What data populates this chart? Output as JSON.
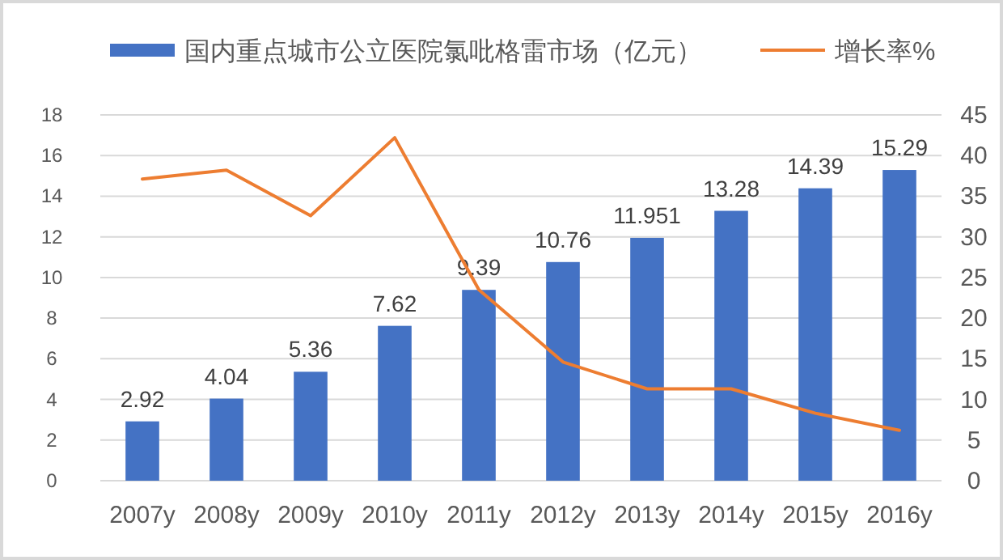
{
  "chart_data": {
    "type": "bar",
    "categories": [
      "2007y",
      "2008y",
      "2009y",
      "2010y",
      "2011y",
      "2012y",
      "2013y",
      "2014y",
      "2015y",
      "2016y"
    ],
    "series": [
      {
        "name": "国内重点城市公立医院氯吡格雷市场（亿元）",
        "color": "#4472c4",
        "values": [
          2.92,
          4.04,
          5.36,
          7.62,
          9.39,
          10.76,
          11.951,
          13.28,
          14.39,
          15.29
        ],
        "value_labels": [
          "2.92",
          "4.04",
          "5.36",
          "7.62",
          "9.39",
          "10.76",
          "11.951",
          "13.28",
          "14.39",
          "15.29"
        ]
      },
      {
        "name": "增长率%",
        "type": "line",
        "axis": "y2",
        "color": "#ed7d31",
        "values": [
          37.1,
          38.2,
          32.6,
          42.2,
          23.5,
          14.6,
          11.3,
          11.3,
          8.3,
          6.2
        ]
      }
    ],
    "ylim": [
      0,
      18
    ],
    "yticks": [
      0,
      2,
      4,
      6,
      8,
      10,
      12,
      14,
      16,
      18
    ],
    "y2lim": [
      0,
      45
    ],
    "y2ticks": [
      0,
      5,
      10,
      15,
      20,
      25,
      30,
      35,
      40,
      45
    ],
    "grid": "y",
    "legend": "top",
    "marker": "none",
    "line_style": "solid"
  }
}
